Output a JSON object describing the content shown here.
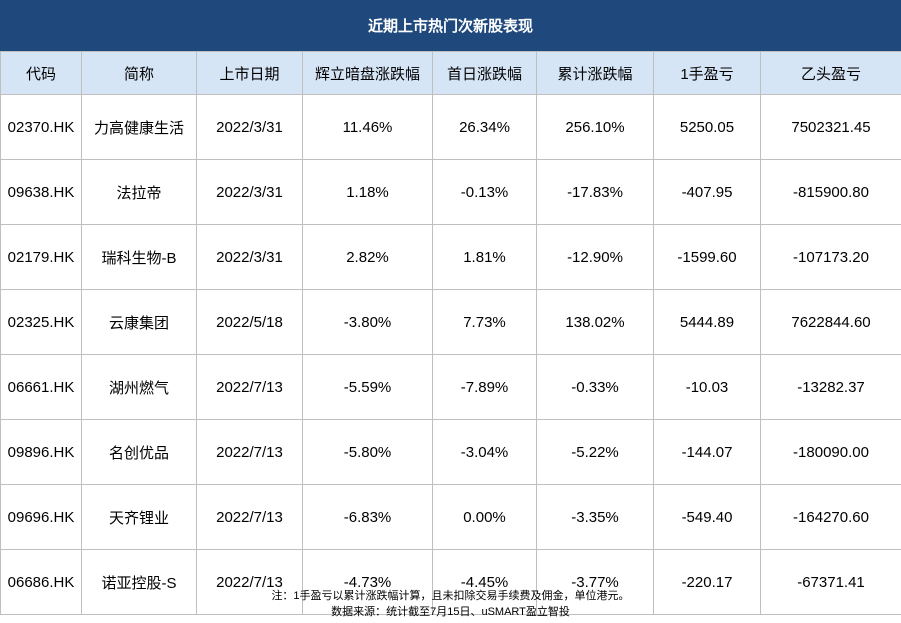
{
  "title": "近期上市热门次新股表现",
  "columns": [
    "代码",
    "简称",
    "上市日期",
    "辉立暗盘涨跌幅",
    "首日涨跌幅",
    "累计涨跌幅",
    "1手盈亏",
    "乙头盈亏"
  ],
  "rows": [
    [
      "02370.HK",
      "力高健康生活",
      "2022/3/31",
      "11.46%",
      "26.34%",
      "256.10%",
      "5250.05",
      "7502321.45"
    ],
    [
      "09638.HK",
      "法拉帝",
      "2022/3/31",
      "1.18%",
      "-0.13%",
      "-17.83%",
      "-407.95",
      "-815900.80"
    ],
    [
      "02179.HK",
      "瑞科生物-B",
      "2022/3/31",
      "2.82%",
      "1.81%",
      "-12.90%",
      "-1599.60",
      "-107173.20"
    ],
    [
      "02325.HK",
      "云康集团",
      "2022/5/18",
      "-3.80%",
      "7.73%",
      "138.02%",
      "5444.89",
      "7622844.60"
    ],
    [
      "06661.HK",
      "湖州燃气",
      "2022/7/13",
      "-5.59%",
      "-7.89%",
      "-0.33%",
      "-10.03",
      "-13282.37"
    ],
    [
      "09896.HK",
      "名创优品",
      "2022/7/13",
      "-5.80%",
      "-3.04%",
      "-5.22%",
      "-144.07",
      "-180090.00"
    ],
    [
      "09696.HK",
      "天齐锂业",
      "2022/7/13",
      "-6.83%",
      "0.00%",
      "-3.35%",
      "-549.40",
      "-164270.60"
    ],
    [
      "06686.HK",
      "诺亚控股-S",
      "2022/7/13",
      "-4.73%",
      "-4.45%",
      "-3.77%",
      "-220.17",
      "-67371.41"
    ]
  ],
  "notes": {
    "line1": "注：1手盈亏以累计涨跌幅计算，且未扣除交易手续费及佣金，单位港元。",
    "line2": "数据来源：统计截至7月15日、uSMART盈立智投"
  },
  "colors": {
    "title_bg": "#1f497d",
    "header_bg": "#d6e5f6",
    "border": "#bfbfbf"
  }
}
